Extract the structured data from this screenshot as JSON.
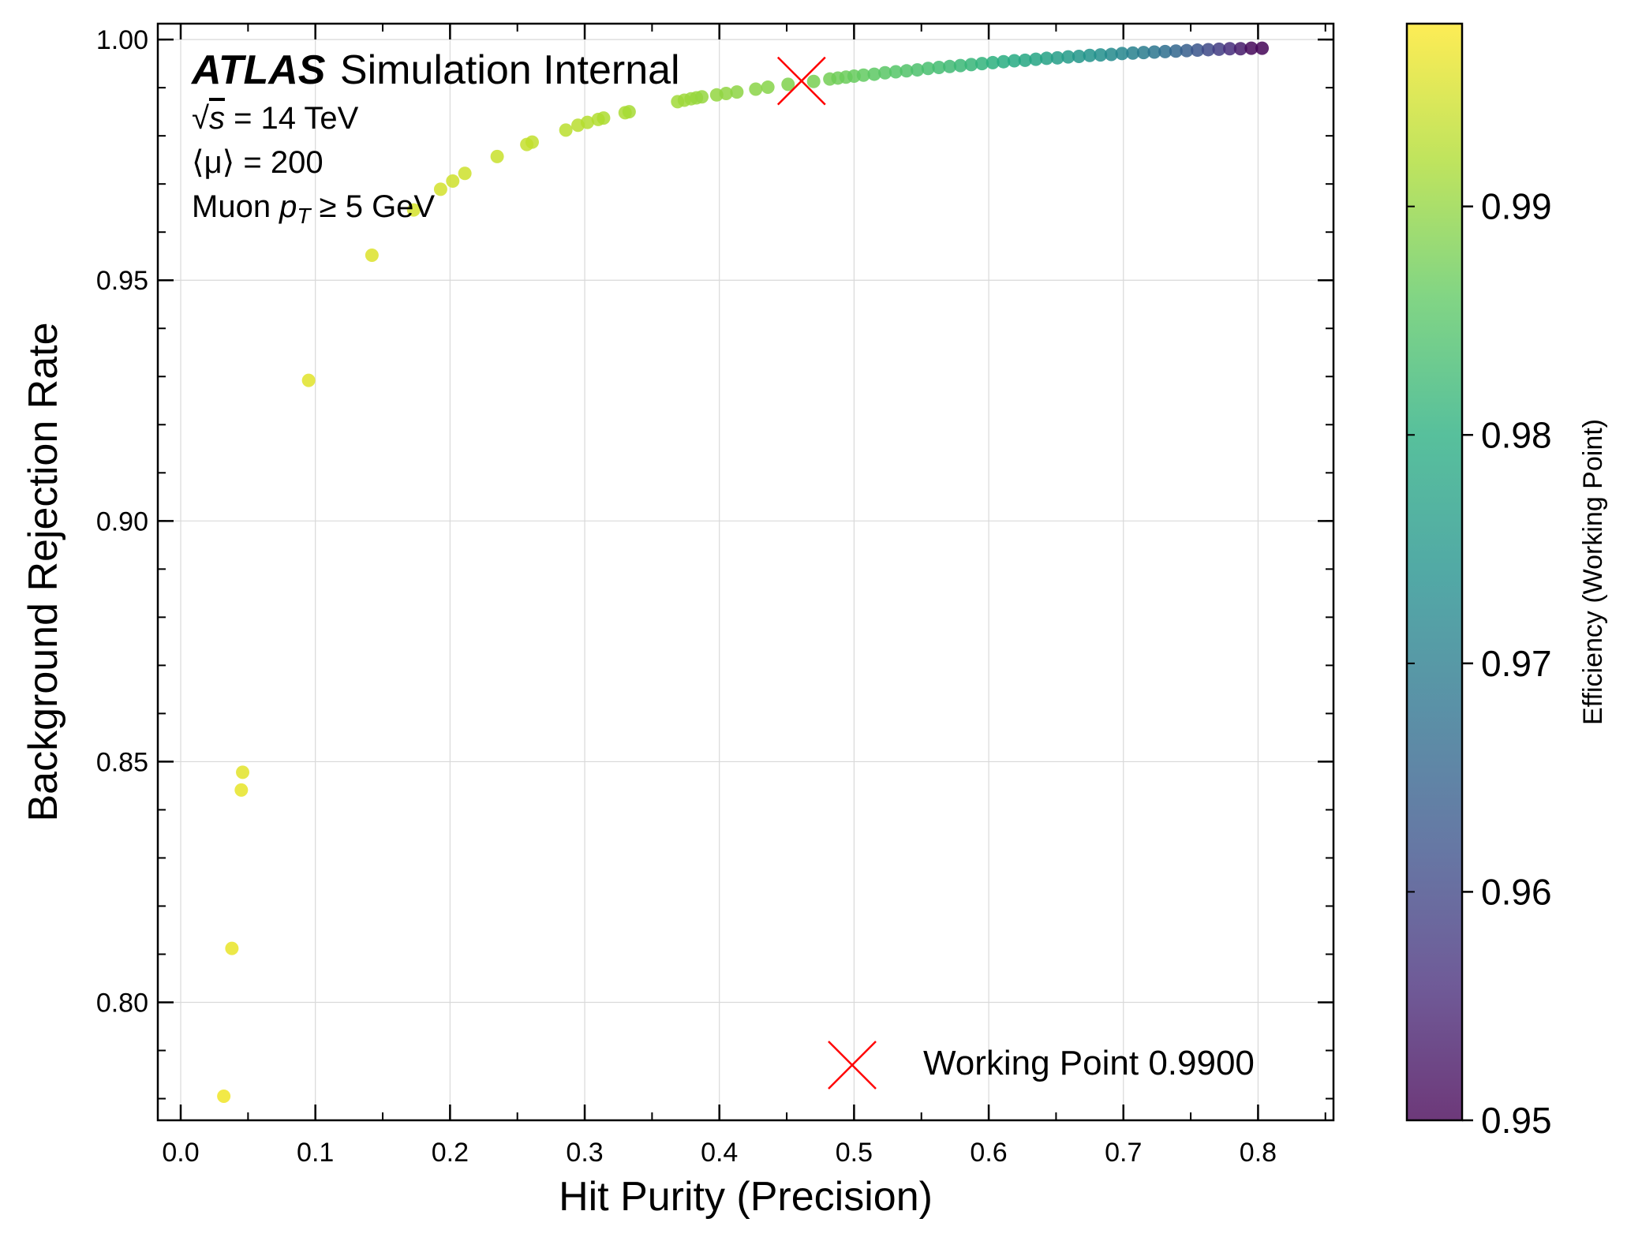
{
  "chart_data": {
    "type": "scatter",
    "xlabel": "Hit Purity (Precision)",
    "ylabel": "Background Rejection Rate",
    "xlim": [
      -0.017,
      0.856
    ],
    "ylim": [
      0.7755,
      1.0033
    ],
    "x_ticks": [
      "0.0",
      "0.1",
      "0.2",
      "0.3",
      "0.4",
      "0.5",
      "0.6",
      "0.7",
      "0.8"
    ],
    "y_ticks": [
      "0.80",
      "0.85",
      "0.90",
      "0.95",
      "1.00"
    ],
    "grid": true,
    "colormap": "viridis",
    "colorbar": {
      "label": "Efficiency (Working Point)",
      "range": [
        0.95,
        0.998
      ],
      "ticks": [
        "0.95",
        "0.96",
        "0.97",
        "0.98",
        "0.99"
      ]
    },
    "annotations": {
      "experiment": "ATLAS",
      "status": "Simulation Internal",
      "energy_prefix": "√",
      "energy_var": "s",
      "energy_text": " = 14 TeV",
      "pileup_text": "⟨μ⟩ = 200",
      "cut_prefix": "Muon ",
      "cut_var": "p",
      "cut_sub": "T",
      "cut_text": " ≥ 5 GeV"
    },
    "working_point": {
      "label": "Working Point 0.9900",
      "x": 0.461,
      "y": 0.9914,
      "color": "#ff0000"
    },
    "series": [
      {
        "x": [
          0.032,
          0.038,
          0.045,
          0.046,
          0.095,
          0.142,
          0.173,
          0.193,
          0.202,
          0.211,
          0.235,
          0.257,
          0.261,
          0.286,
          0.295,
          0.302,
          0.31,
          0.314,
          0.33,
          0.333,
          0.369,
          0.374,
          0.379,
          0.383,
          0.387,
          0.398,
          0.405,
          0.413,
          0.427,
          0.436,
          0.451,
          0.47,
          0.482,
          0.488,
          0.494,
          0.5,
          0.507,
          0.515,
          0.523,
          0.531,
          0.539,
          0.547,
          0.555,
          0.563,
          0.571,
          0.579,
          0.587,
          0.595,
          0.603,
          0.611,
          0.619,
          0.627,
          0.635,
          0.643,
          0.651,
          0.659,
          0.667,
          0.675,
          0.683,
          0.691,
          0.699,
          0.707,
          0.715,
          0.723,
          0.731,
          0.739,
          0.747,
          0.755,
          0.763,
          0.771,
          0.779,
          0.787,
          0.795,
          0.803
        ],
        "y": [
          0.7805,
          0.8112,
          0.8441,
          0.8478,
          0.9292,
          0.9552,
          0.9646,
          0.9689,
          0.9706,
          0.9722,
          0.9757,
          0.9782,
          0.9787,
          0.9812,
          0.9822,
          0.9828,
          0.9834,
          0.9837,
          0.9848,
          0.985,
          0.9871,
          0.9874,
          0.9877,
          0.9879,
          0.9881,
          0.9885,
          0.9888,
          0.9891,
          0.9897,
          0.9901,
          0.9907,
          0.9913,
          0.9918,
          0.992,
          0.9922,
          0.9924,
          0.9926,
          0.9928,
          0.9931,
          0.9933,
          0.9935,
          0.9937,
          0.994,
          0.9942,
          0.9944,
          0.9946,
          0.9948,
          0.995,
          0.9952,
          0.9954,
          0.9956,
          0.9957,
          0.9959,
          0.9961,
          0.9962,
          0.9964,
          0.9965,
          0.9967,
          0.9968,
          0.9969,
          0.9971,
          0.9972,
          0.9973,
          0.9974,
          0.9975,
          0.9976,
          0.9977,
          0.9978,
          0.9979,
          0.998,
          0.9981,
          0.9981,
          0.9982,
          0.9982
        ],
        "c": [
          0.997,
          0.9965,
          0.9963,
          0.996,
          0.9958,
          0.9955,
          0.995,
          0.9948,
          0.9945,
          0.9943,
          0.994,
          0.9937,
          0.9935,
          0.993,
          0.9928,
          0.9925,
          0.9923,
          0.992,
          0.9918,
          0.9915,
          0.991,
          0.9908,
          0.9906,
          0.9904,
          0.9902,
          0.99,
          0.9898,
          0.9896,
          0.9893,
          0.989,
          0.9886,
          0.988,
          0.9876,
          0.9873,
          0.987,
          0.9866,
          0.9862,
          0.9858,
          0.9854,
          0.985,
          0.9845,
          0.984,
          0.9835,
          0.983,
          0.9825,
          0.982,
          0.9815,
          0.981,
          0.9804,
          0.9798,
          0.9792,
          0.9786,
          0.978,
          0.9774,
          0.9767,
          0.976,
          0.9752,
          0.9744,
          0.9736,
          0.9727,
          0.9718,
          0.9708,
          0.9697,
          0.9685,
          0.9672,
          0.9658,
          0.9642,
          0.9625,
          0.9606,
          0.9585,
          0.956,
          0.9535,
          0.951,
          0.9505
        ]
      }
    ]
  }
}
